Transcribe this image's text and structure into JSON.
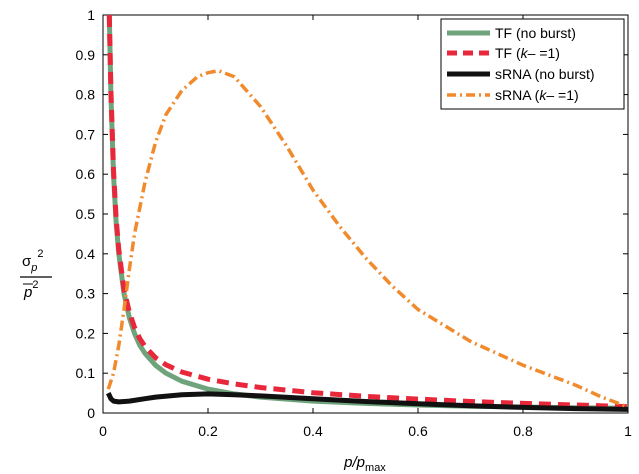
{
  "chart_data": {
    "type": "line",
    "title": "",
    "xlabel": {
      "main": "p/p",
      "sub": "max"
    },
    "ylabel": {
      "numerator": "σ",
      "numerator_sub": "p",
      "numerator_sup": "2",
      "denominator": "p",
      "denominator_sup": "2"
    },
    "xlim": [
      0,
      1
    ],
    "ylim": [
      0,
      1
    ],
    "xticks": [
      "0",
      "0.2",
      "0.4",
      "0.6",
      "0.8",
      "1"
    ],
    "xtick_values": [
      0,
      0.2,
      0.4,
      0.6,
      0.8,
      1
    ],
    "yticks": [
      "0",
      "0.1",
      "0.2",
      "0.3",
      "0.4",
      "0.5",
      "0.6",
      "0.7",
      "0.8",
      "0.9",
      "1"
    ],
    "ytick_values": [
      0,
      0.1,
      0.2,
      0.3,
      0.4,
      0.5,
      0.6,
      0.7,
      0.8,
      0.9,
      1
    ],
    "grid": false,
    "legend_position": "top-right",
    "legend": [
      {
        "label": "TF (no burst)",
        "color": "#6fa37c",
        "style": "solid"
      },
      {
        "label_pre": "TF (",
        "label_k": "k",
        "label_post": "– =1)",
        "color": "#e8283a",
        "style": "dashed"
      },
      {
        "label": "sRNA (no burst)",
        "color": "#111111",
        "style": "solid"
      },
      {
        "label_pre": "sRNA (",
        "label_k": "k",
        "label_post": "– =1)",
        "color": "#f08a2c",
        "style": "dashdot"
      }
    ],
    "series": [
      {
        "name": "TF (no burst)",
        "color": "#6fa37c",
        "style": "solid",
        "x": [
          0.012,
          0.015,
          0.02,
          0.025,
          0.03,
          0.04,
          0.05,
          0.06,
          0.07,
          0.08,
          0.1,
          0.12,
          0.15,
          0.2,
          0.25,
          0.3,
          0.4,
          0.5,
          0.6,
          0.7,
          0.8,
          0.9,
          1.0
        ],
        "y": [
          1.0,
          0.8,
          0.6,
          0.48,
          0.4,
          0.3,
          0.24,
          0.2,
          0.17,
          0.15,
          0.12,
          0.1,
          0.08,
          0.06,
          0.048,
          0.04,
          0.03,
          0.024,
          0.02,
          0.017,
          0.015,
          0.013,
          0.012
        ]
      },
      {
        "name": "TF (k– =1)",
        "color": "#e8283a",
        "style": "dashed",
        "x": [
          0.012,
          0.015,
          0.02,
          0.025,
          0.03,
          0.04,
          0.05,
          0.06,
          0.07,
          0.08,
          0.1,
          0.12,
          0.15,
          0.2,
          0.25,
          0.3,
          0.4,
          0.5,
          0.6,
          0.7,
          0.8,
          0.9,
          1.0
        ],
        "y": [
          1.0,
          0.81,
          0.61,
          0.49,
          0.41,
          0.31,
          0.254,
          0.215,
          0.187,
          0.167,
          0.139,
          0.121,
          0.103,
          0.085,
          0.073,
          0.064,
          0.051,
          0.042,
          0.035,
          0.029,
          0.024,
          0.02,
          0.016
        ]
      },
      {
        "name": "sRNA (no burst)",
        "color": "#111111",
        "style": "solid",
        "x": [
          0.01,
          0.015,
          0.02,
          0.03,
          0.05,
          0.08,
          0.1,
          0.15,
          0.2,
          0.25,
          0.3,
          0.4,
          0.5,
          0.6,
          0.7,
          0.8,
          0.9,
          1.0
        ],
        "y": [
          0.05,
          0.036,
          0.03,
          0.028,
          0.03,
          0.036,
          0.04,
          0.046,
          0.048,
          0.046,
          0.043,
          0.036,
          0.029,
          0.023,
          0.018,
          0.014,
          0.011,
          0.009
        ]
      },
      {
        "name": "sRNA (k– =1)",
        "color": "#f08a2c",
        "style": "dashdot",
        "x": [
          0.01,
          0.02,
          0.03,
          0.04,
          0.05,
          0.06,
          0.08,
          0.1,
          0.12,
          0.15,
          0.18,
          0.2,
          0.22,
          0.25,
          0.3,
          0.35,
          0.4,
          0.45,
          0.5,
          0.55,
          0.6,
          0.7,
          0.8,
          0.9,
          0.95,
          1.0
        ],
        "y": [
          0.06,
          0.1,
          0.17,
          0.26,
          0.36,
          0.45,
          0.58,
          0.68,
          0.75,
          0.81,
          0.845,
          0.855,
          0.86,
          0.845,
          0.77,
          0.67,
          0.56,
          0.47,
          0.39,
          0.32,
          0.26,
          0.18,
          0.12,
          0.07,
          0.04,
          0.015
        ]
      }
    ]
  }
}
